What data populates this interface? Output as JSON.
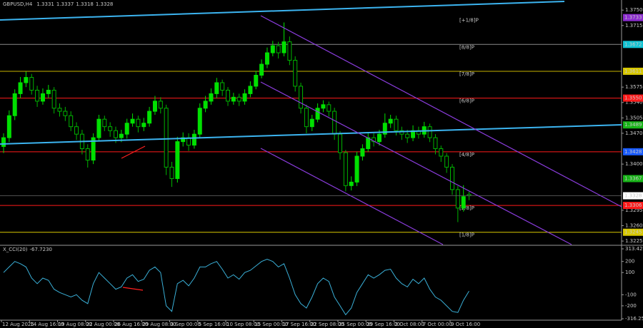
{
  "chart_data": {
    "type": "candlestick",
    "title": "GBPUSD,H4",
    "categories": [
      "12 Aug 2025",
      null,
      null,
      null,
      null,
      "14 Aug 16:00",
      null,
      null,
      null,
      null,
      "19 Aug 08:00",
      null,
      null,
      null,
      null,
      "22 Aug 00:00",
      null,
      null,
      null,
      null,
      "26 Aug 16:00",
      null,
      null,
      null,
      null,
      "29 Aug 08:00",
      null,
      null,
      null,
      null,
      "3 Sep 00:00",
      null,
      null,
      null,
      null,
      "5 Sep 16:00",
      null,
      null,
      null,
      null,
      "10 Sep 08:00",
      null,
      null,
      null,
      null,
      "15 Sep 00:00",
      null,
      null,
      null,
      null,
      "17 Sep 16:00",
      null,
      null,
      null,
      null,
      "22 Sep 08:00",
      null,
      null,
      null,
      null,
      "25 Sep 00:00",
      null,
      null,
      null,
      null,
      "29 Sep 16:00",
      null,
      null,
      null,
      null,
      "2 Oct 08:00",
      null,
      null,
      null,
      null,
      "7 Oct 00:00",
      null,
      null,
      null,
      null,
      "9 Oct 16:00",
      null,
      null,
      null
    ],
    "open": [
      1.344,
      1.346,
      1.351,
      1.356,
      1.3585,
      1.3597,
      1.3568,
      1.3543,
      1.356,
      1.3568,
      1.3527,
      1.352,
      1.351,
      1.3485,
      1.3468,
      1.3435,
      1.3409,
      1.346,
      1.3502,
      1.3485,
      1.3476,
      1.346,
      1.3468,
      1.3493,
      1.3502,
      1.3485,
      1.3493,
      1.352,
      1.3543,
      1.3527,
      1.3393,
      1.3367,
      1.3451,
      1.346,
      1.3443,
      1.3468,
      1.3527,
      1.3543,
      1.356,
      1.3585,
      1.3568,
      1.3543,
      1.3552,
      1.3543,
      1.356,
      1.3577,
      1.3602,
      1.3627,
      1.3653,
      1.3669,
      1.3653,
      1.3678,
      1.3636,
      1.3577,
      1.3527,
      1.3485,
      1.3502,
      1.3527,
      1.3535,
      1.352,
      1.3468,
      1.3426,
      1.3351,
      1.3359,
      1.3418,
      1.3435,
      1.346,
      1.3451,
      1.3468,
      1.3493,
      1.3502,
      1.3476,
      1.3468,
      1.346,
      1.3476,
      1.3468,
      1.3485,
      1.346,
      1.3435,
      1.3418,
      1.3393,
      1.3342,
      1.33,
      1.3331
    ],
    "high": [
      1.347,
      1.3522,
      1.357,
      1.3598,
      1.361,
      1.3605,
      1.3578,
      1.3572,
      1.358,
      1.3575,
      1.3538,
      1.353,
      1.352,
      1.3495,
      1.3478,
      1.3445,
      1.347,
      1.3512,
      1.351,
      1.3495,
      1.3485,
      1.3478,
      1.3503,
      1.3515,
      1.351,
      1.3505,
      1.353,
      1.3555,
      1.3552,
      1.3535,
      1.3405,
      1.3462,
      1.3472,
      1.347,
      1.3478,
      1.3538,
      1.3555,
      1.3572,
      1.3596,
      1.3592,
      1.3575,
      1.3562,
      1.356,
      1.357,
      1.3588,
      1.3612,
      1.3638,
      1.3665,
      1.368,
      1.3678,
      1.3722,
      1.369,
      1.3645,
      1.3585,
      1.3535,
      1.3512,
      1.3538,
      1.3545,
      1.3542,
      1.3528,
      1.3475,
      1.3432,
      1.3372,
      1.3428,
      1.3445,
      1.347,
      1.347,
      1.3478,
      1.3515,
      1.3512,
      1.351,
      1.3485,
      1.3478,
      1.3488,
      1.3485,
      1.3496,
      1.3492,
      1.3468,
      1.3442,
      1.3425,
      1.34,
      1.335,
      1.3352,
      1.3337
    ],
    "low": [
      1.3425,
      1.345,
      1.35,
      1.355,
      1.3575,
      1.3558,
      1.353,
      1.3535,
      1.355,
      1.3515,
      1.3508,
      1.3498,
      1.3475,
      1.3455,
      1.3422,
      1.3392,
      1.34,
      1.3452,
      1.3475,
      1.3462,
      1.3448,
      1.345,
      1.3458,
      1.3485,
      1.3472,
      1.3475,
      1.3485,
      1.3512,
      1.3515,
      1.3375,
      1.3348,
      1.3358,
      1.344,
      1.343,
      1.3435,
      1.346,
      1.3518,
      1.3535,
      1.355,
      1.3555,
      1.3532,
      1.3535,
      1.3532,
      1.3535,
      1.3552,
      1.357,
      1.3595,
      1.3618,
      1.3645,
      1.364,
      1.3645,
      1.3625,
      1.3565,
      1.3515,
      1.347,
      1.3475,
      1.3495,
      1.3518,
      1.3508,
      1.3455,
      1.341,
      1.3338,
      1.334,
      1.335,
      1.3408,
      1.3428,
      1.344,
      1.3442,
      1.346,
      1.3482,
      1.3465,
      1.3455,
      1.3448,
      1.3452,
      1.3458,
      1.346,
      1.345,
      1.3422,
      1.3405,
      1.338,
      1.333,
      1.3268,
      1.3292,
      1.3318
    ],
    "close": [
      1.346,
      1.351,
      1.356,
      1.3585,
      1.3597,
      1.3568,
      1.3543,
      1.356,
      1.3568,
      1.3527,
      1.352,
      1.351,
      1.3485,
      1.3468,
      1.3435,
      1.3409,
      1.346,
      1.3502,
      1.3485,
      1.3476,
      1.346,
      1.3468,
      1.3493,
      1.3502,
      1.3485,
      1.3493,
      1.352,
      1.3543,
      1.3527,
      1.3393,
      1.3367,
      1.3451,
      1.346,
      1.3443,
      1.3468,
      1.3527,
      1.3543,
      1.356,
      1.3585,
      1.3568,
      1.3543,
      1.3552,
      1.3543,
      1.356,
      1.3577,
      1.3602,
      1.3627,
      1.3653,
      1.3669,
      1.3653,
      1.3678,
      1.3636,
      1.3577,
      1.3527,
      1.3485,
      1.3502,
      1.3527,
      1.3535,
      1.352,
      1.3468,
      1.3426,
      1.3351,
      1.3359,
      1.3418,
      1.3435,
      1.346,
      1.3451,
      1.3468,
      1.3493,
      1.3502,
      1.3476,
      1.3468,
      1.346,
      1.3476,
      1.3468,
      1.3485,
      1.346,
      1.3435,
      1.3418,
      1.3393,
      1.3342,
      1.33,
      1.3326,
      1.3328
    ],
    "colors": {
      "up": "#00e000",
      "down": "#00b400"
    },
    "ylim": [
      1.3217,
      1.3773
    ],
    "yticks": [
      {
        "value": 1.375,
        "label": "1.3750"
      },
      1.3715,
      1.3575,
      {
        "value": 1.354,
        "label": "1.3540"
      },
      1.3505,
      {
        "value": 1.347,
        "label": "1.3470"
      },
      {
        "value": 1.34,
        "label": "1.3400"
      },
      1.3295,
      {
        "value": 1.326,
        "label": "1.3260"
      },
      1.3225
    ],
    "levels": [
      {
        "name": "[+1/8]P",
        "value": 1.3733,
        "color": "#8c2ccf"
      },
      {
        "name": "[8/8]P",
        "value": 1.3672,
        "color": "#10c4d4",
        "line_color": "#8a8a8a"
      },
      {
        "name": "[7/8]P",
        "value": 1.3611,
        "color": "#d8c800",
        "line_color": "#c8b400"
      },
      {
        "name": "[6/8]P",
        "value": 1.355,
        "value_label": "1.3550",
        "color": "#ff1a1a",
        "line_color": "#ff1a1a"
      },
      {
        "value": 1.3489,
        "color": "#18b418"
      },
      {
        "name": "[4/8]P",
        "value": 1.3428,
        "color": "#1a5cff",
        "line_color": "#ff1a1a"
      },
      {
        "value": 1.3367,
        "color": "#18b418"
      },
      {
        "name": "[2/8]P",
        "value": 1.3306,
        "color": "#ff1a1a",
        "line_color": "#ff1a1a"
      },
      {
        "name": "[1/8]P",
        "value": 1.3245,
        "color": "#d8c800",
        "line_color": "#d8c800"
      }
    ],
    "indicator": {
      "type": "line",
      "name": "X_CCI(20)",
      "current_value_label": "-67.7230",
      "color": "#3ab0d8",
      "values": [
        100,
        150,
        200,
        180,
        150,
        50,
        0,
        50,
        30,
        -50,
        -80,
        -100,
        -120,
        -100,
        -150,
        -180,
        0,
        100,
        50,
        0,
        -50,
        -30,
        50,
        80,
        20,
        40,
        120,
        150,
        100,
        -200,
        -250,
        0,
        30,
        -20,
        50,
        150,
        150,
        180,
        200,
        130,
        50,
        80,
        40,
        100,
        120,
        160,
        200,
        220,
        200,
        150,
        180,
        50,
        -100,
        -180,
        -220,
        -120,
        0,
        50,
        20,
        -120,
        -200,
        -280,
        -220,
        -80,
        0,
        80,
        50,
        80,
        120,
        130,
        50,
        0,
        -30,
        40,
        0,
        50,
        -50,
        -120,
        -150,
        -200,
        -250,
        -260,
        -150,
        -67.723
      ],
      "ylim": [
        -316.257,
        313.429
      ],
      "yticks": [
        313.429,
        200,
        100,
        -100,
        -200,
        -316.257
      ]
    }
  }
}
